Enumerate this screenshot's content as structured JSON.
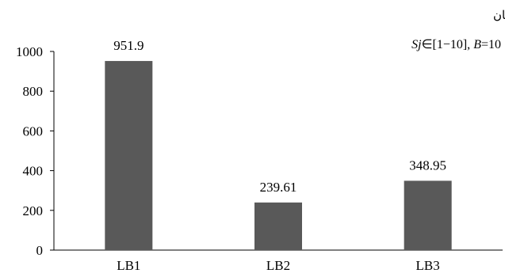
{
  "chart_data": {
    "type": "bar",
    "title": "میانگین زمان",
    "subtitle": "Sj∈[1−10], B=10",
    "categories": [
      "LB1",
      "LB2",
      "LB3"
    ],
    "values": [
      951.9,
      239.61,
      348.95
    ],
    "data_labels": [
      "951.9",
      "239.61",
      "348.95"
    ],
    "ylim": [
      0,
      1000
    ],
    "yticks": [
      0,
      200,
      400,
      600,
      800,
      1000
    ],
    "xlabel": "",
    "ylabel": "",
    "grid": false,
    "legend": "none",
    "colors": {
      "bar": "#595959",
      "axis": "#000000"
    }
  }
}
